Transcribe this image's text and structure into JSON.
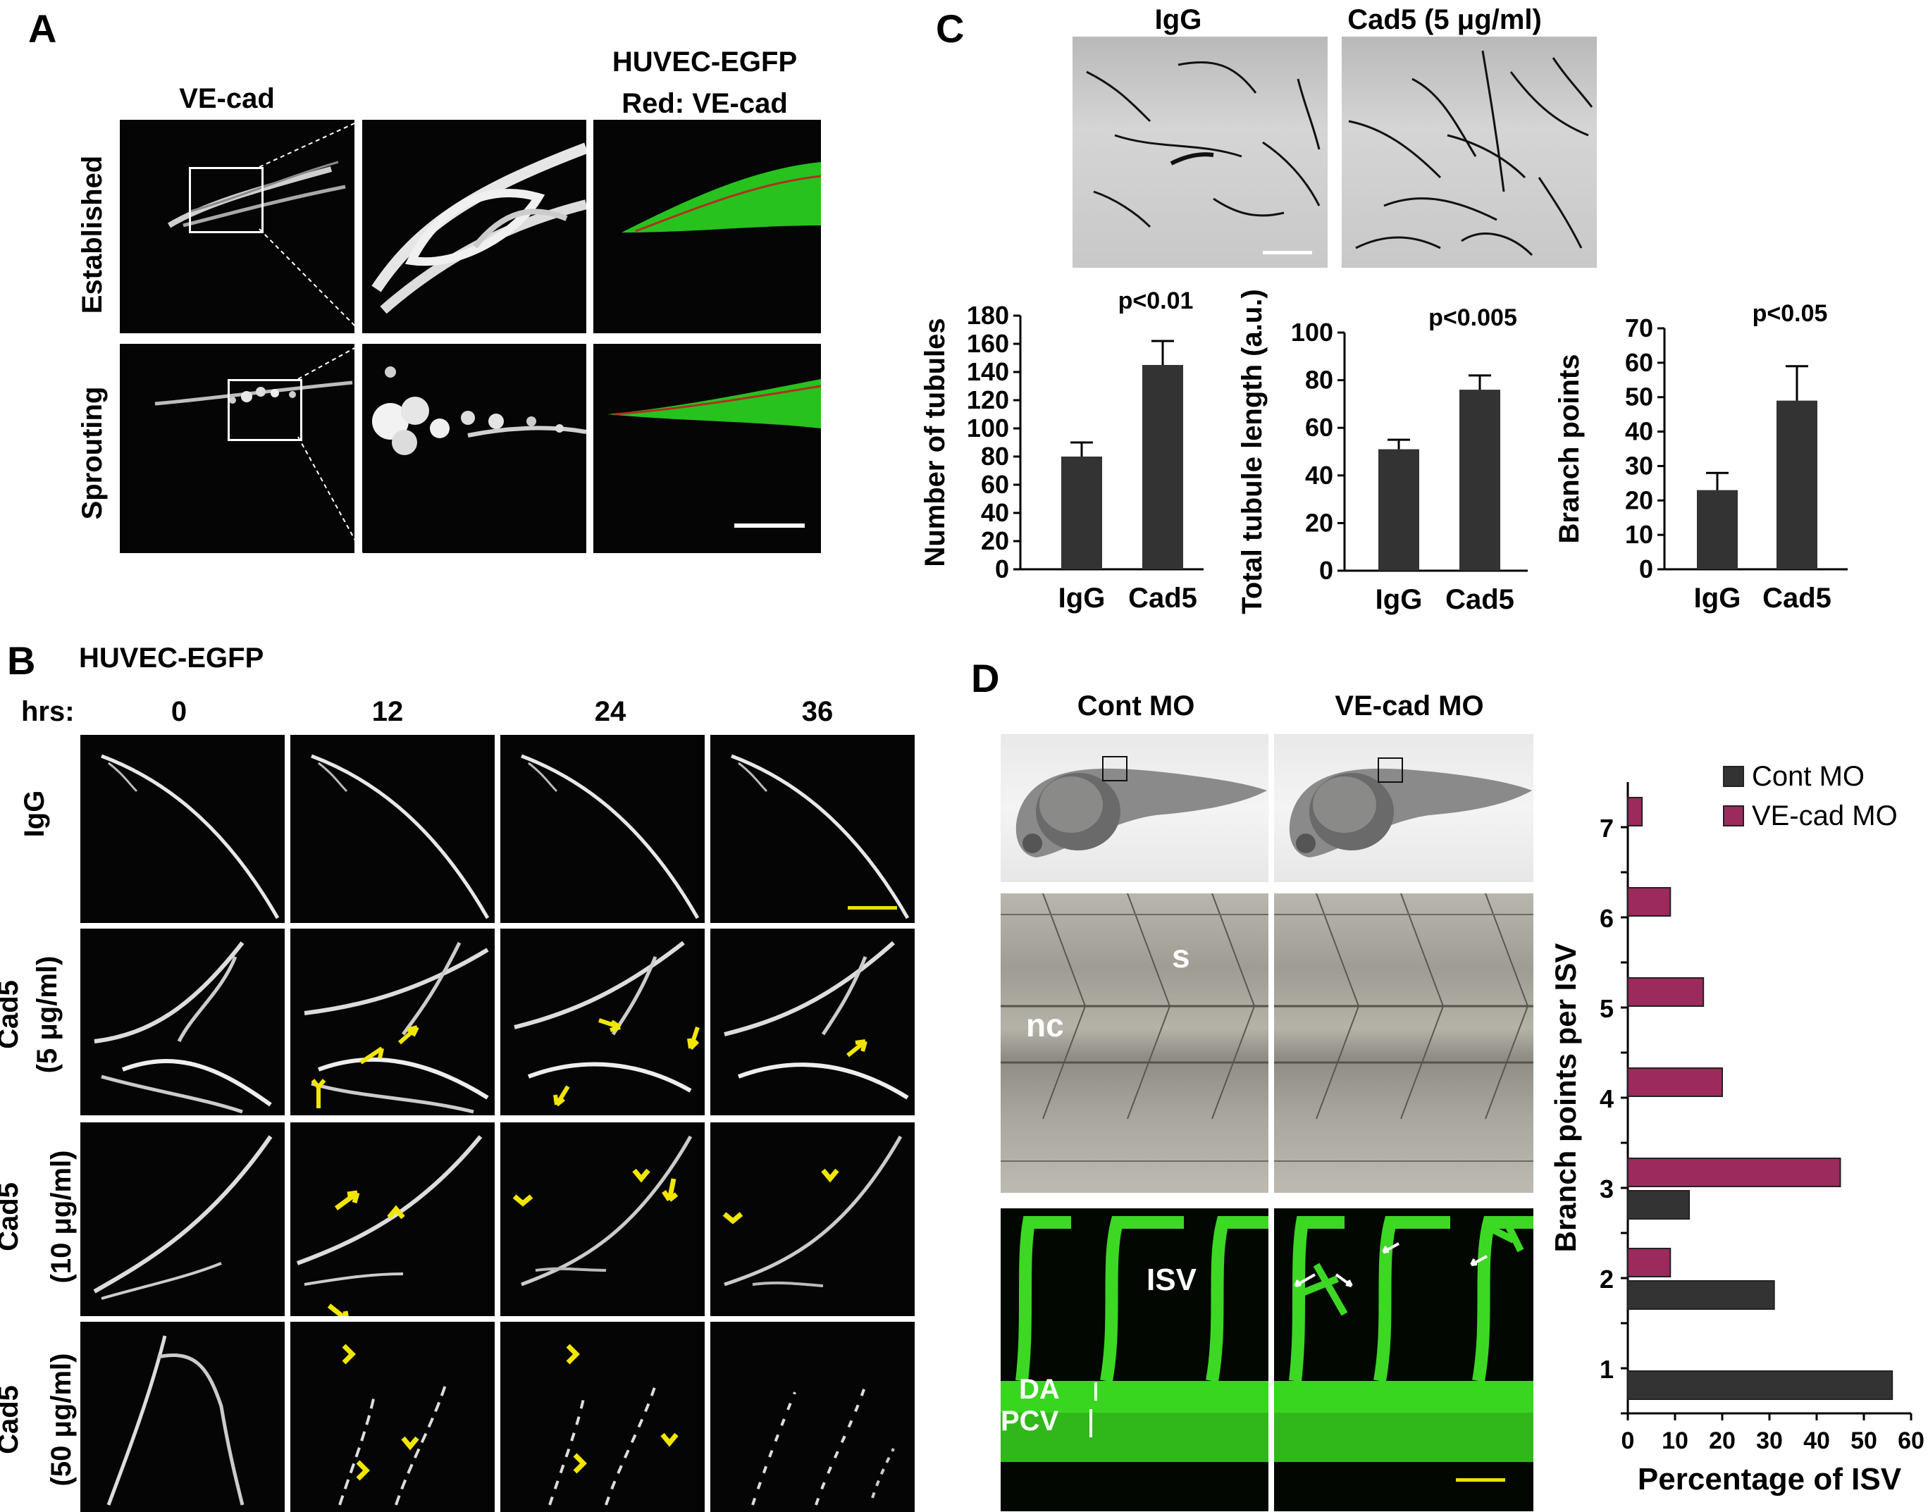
{
  "panelA": {
    "letter": "A",
    "col1": "VE-cad",
    "col3_line1": "HUVEC-EGFP",
    "col3_line2": "Red: VE-cad",
    "row1": "Established",
    "row2": "Sprouting"
  },
  "panelB": {
    "letter": "B",
    "title": "HUVEC-EGFP",
    "hrs_label": "hrs:",
    "times": [
      "0",
      "12",
      "24",
      "36"
    ],
    "row1": "IgG",
    "row2_l1": "Cad5",
    "row2_l2": "(5 μg/ml)",
    "row3_l1": "Cad5",
    "row3_l2": "(10 μg/ml)",
    "row4_l1": "Cad5",
    "row4_l2": "(50 μg/ml)"
  },
  "panelC": {
    "letter": "C",
    "img1": "IgG",
    "img2": "Cad5 (5 μg/ml)"
  },
  "panelD": {
    "letter": "D",
    "col1": "Cont MO",
    "col2": "VE-cad MO",
    "label_s": "s",
    "label_nc": "nc",
    "label_isv": "ISV",
    "label_da": "DA",
    "label_pcv": "PCV"
  },
  "chart_data": [
    {
      "type": "bar",
      "categories": [
        "IgG",
        "Cad5"
      ],
      "values": [
        80,
        145
      ],
      "errors": [
        10,
        17
      ],
      "ylabel": "Number of tubules",
      "ylim": [
        0,
        180
      ],
      "yticks": [
        "0",
        "20",
        "40",
        "60",
        "80",
        "100",
        "120",
        "140",
        "160",
        "180"
      ],
      "annotation": "p<0.01",
      "color": "#333333"
    },
    {
      "type": "bar",
      "categories": [
        "IgG",
        "Cad5"
      ],
      "values": [
        51,
        76
      ],
      "errors": [
        4,
        6
      ],
      "ylabel": "Total tubule length (a.u.)",
      "ylim": [
        0,
        100
      ],
      "yticks": [
        "0",
        "20",
        "40",
        "60",
        "80",
        "100"
      ],
      "annotation": "p<0.005",
      "color": "#333333"
    },
    {
      "type": "bar",
      "categories": [
        "IgG",
        "Cad5"
      ],
      "values": [
        23,
        49
      ],
      "errors": [
        5,
        10
      ],
      "ylabel": "Branch points",
      "ylim": [
        0,
        70
      ],
      "yticks": [
        "0",
        "10",
        "20",
        "30",
        "40",
        "50",
        "60",
        "70"
      ],
      "annotation": "p<0.05",
      "color": "#333333"
    },
    {
      "type": "bar",
      "orientation": "horizontal",
      "categories": [
        "1",
        "2",
        "3",
        "4",
        "5",
        "6",
        "7"
      ],
      "series": [
        {
          "name": "Cont MO",
          "values": [
            56,
            31,
            13,
            0,
            0,
            0,
            0
          ],
          "color": "#333333"
        },
        {
          "name": "VE-cad MO",
          "values": [
            0,
            9,
            45,
            20,
            16,
            9,
            3
          ],
          "color": "#9c2a5c"
        }
      ],
      "xlabel": "Percentage of ISV",
      "ylabel": "Branch points per ISV",
      "xlim": [
        0,
        60
      ],
      "xticks": [
        "0",
        "10",
        "20",
        "30",
        "40",
        "50",
        "60"
      ],
      "legend": "top-right"
    }
  ]
}
